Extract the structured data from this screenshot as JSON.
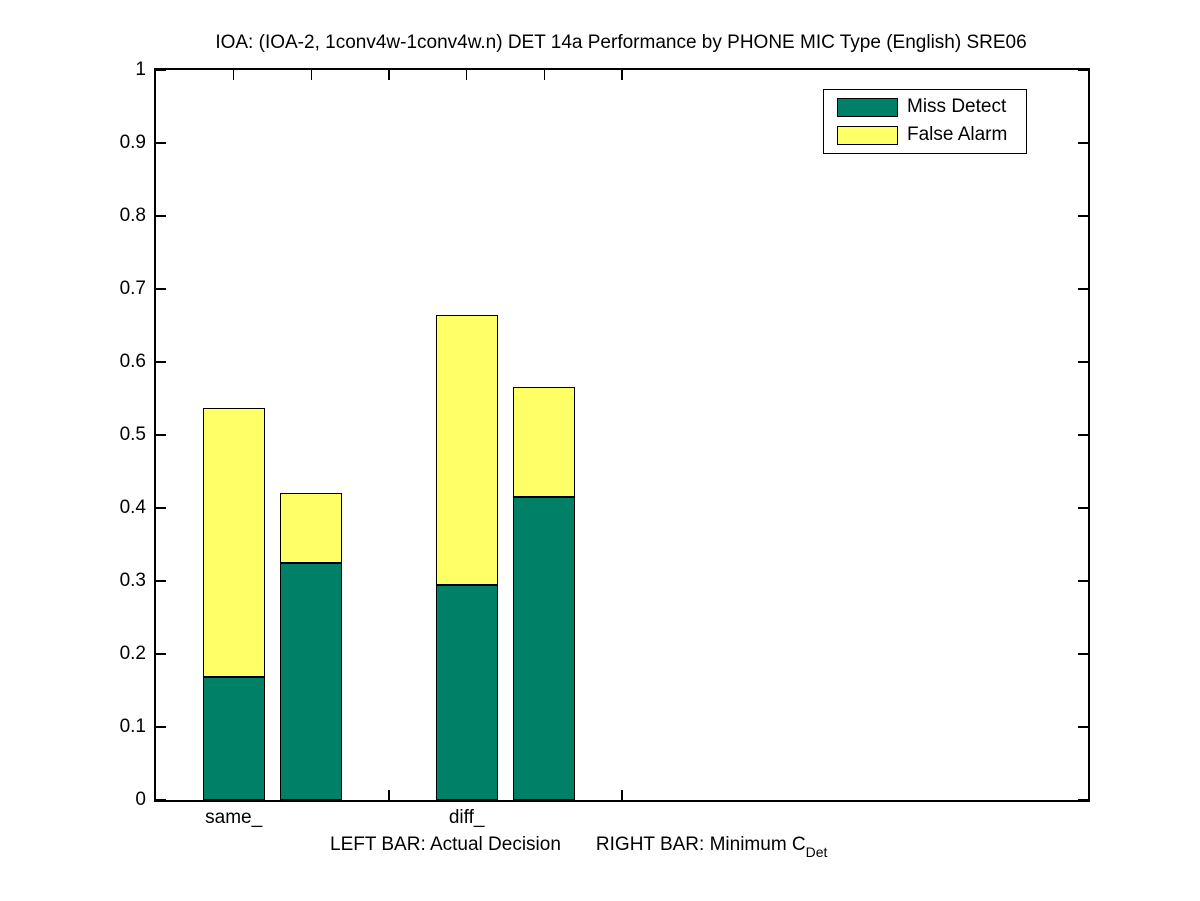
{
  "chart_data": {
    "type": "bar",
    "stacked": true,
    "title": "IOA: (IOA-2, 1conv4w-1conv4w.n) DET 14a Performance by PHONE MIC Type (English) SRE06",
    "categories": [
      "same_",
      "diff_"
    ],
    "bar_meaning": {
      "left_bar": "Actual Decision",
      "right_bar": "Minimum C_Det"
    },
    "bars": [
      {
        "category": "same_",
        "bar": "Actual Decision",
        "x": 1,
        "miss_detect": 0.168,
        "false_alarm": 0.369,
        "total": 0.537
      },
      {
        "category": "same_",
        "bar": "Minimum C_Det",
        "x": 2,
        "miss_detect": 0.325,
        "false_alarm": 0.095,
        "total": 0.42
      },
      {
        "category": "diff_",
        "bar": "Actual Decision",
        "x": 4,
        "miss_detect": 0.295,
        "false_alarm": 0.369,
        "total": 0.664
      },
      {
        "category": "diff_",
        "bar": "Minimum C_Det",
        "x": 5,
        "miss_detect": 0.415,
        "false_alarm": 0.151,
        "total": 0.566
      }
    ],
    "series": [
      {
        "name": "Miss Detect",
        "color": "#008066"
      },
      {
        "name": "False Alarm",
        "color": "#ffff66"
      }
    ],
    "axes": {
      "ylim": [
        0,
        1
      ],
      "xlim": [
        0,
        12
      ],
      "yticks": [
        "0",
        "0.1",
        "0.2",
        "0.3",
        "0.4",
        "0.5",
        "0.6",
        "0.7",
        "0.8",
        "0.9",
        "1"
      ],
      "xticks": [
        1,
        2,
        3,
        4,
        5,
        6
      ],
      "xtick_labels": [
        "same_",
        "",
        "",
        "diff_",
        "",
        ""
      ],
      "bar_width": 0.8,
      "grid": false,
      "box": true
    },
    "legend_position": "top-right"
  },
  "caption": {
    "left": "LEFT BAR: Actual Decision",
    "right": "RIGHT BAR: Minimum C",
    "right_subscript": "Det"
  },
  "colors": {
    "miss_detect": "#008066",
    "false_alarm": "#ffff66",
    "axis": "#000000",
    "background": "#ffffff"
  }
}
